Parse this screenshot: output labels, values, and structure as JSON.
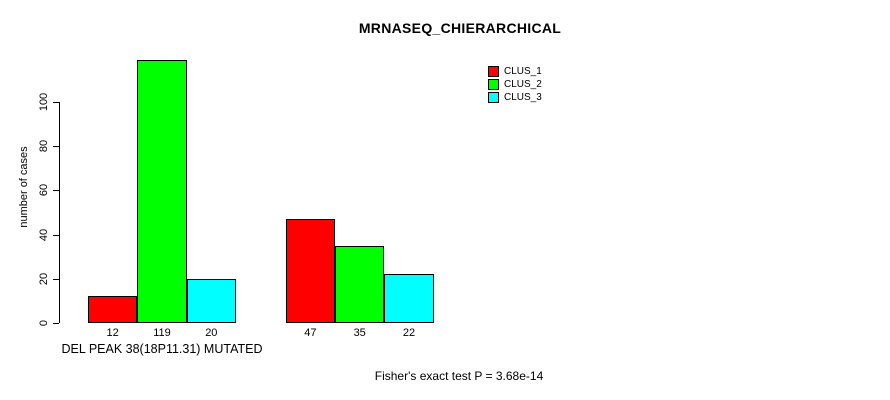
{
  "title": "MRNASEQ_CHIERARCHICAL",
  "y_axis": {
    "label": "number of cases",
    "tick_values": [
      0,
      20,
      40,
      60,
      80,
      100
    ]
  },
  "x_axis": {
    "group_labels": [
      "DEL PEAK 38(18P11.31) MUTATED",
      ""
    ]
  },
  "legend": {
    "items": [
      {
        "label": "CLUS_1",
        "color": "#FF0000"
      },
      {
        "label": "CLUS_2",
        "color": "#00FF00"
      },
      {
        "label": "CLUS_3",
        "color": "#00FFFF"
      }
    ]
  },
  "annotation": {
    "text": "Fisher's exact test P = 3.68e-14"
  },
  "chart_data": {
    "type": "bar",
    "title": "MRNASEQ_CHIERARCHICAL",
    "xlabel": "",
    "ylabel": "number of cases",
    "ylim": [
      0,
      119
    ],
    "y_ticks": [
      0,
      20,
      40,
      60,
      80,
      100
    ],
    "grid": false,
    "legend_position": "top-right",
    "categories": [
      "DEL PEAK 38(18P11.31) MUTATED",
      ""
    ],
    "series": [
      {
        "name": "CLUS_1",
        "color": "#FF0000",
        "values": [
          12,
          47
        ]
      },
      {
        "name": "CLUS_2",
        "color": "#00FF00",
        "values": [
          119,
          35
        ]
      },
      {
        "name": "CLUS_3",
        "color": "#00FFFF",
        "values": [
          20,
          22
        ]
      }
    ],
    "bar_value_labels": [
      [
        12,
        119,
        20
      ],
      [
        47,
        35,
        22
      ]
    ],
    "annotation": "Fisher's exact test P = 3.68e-14"
  }
}
